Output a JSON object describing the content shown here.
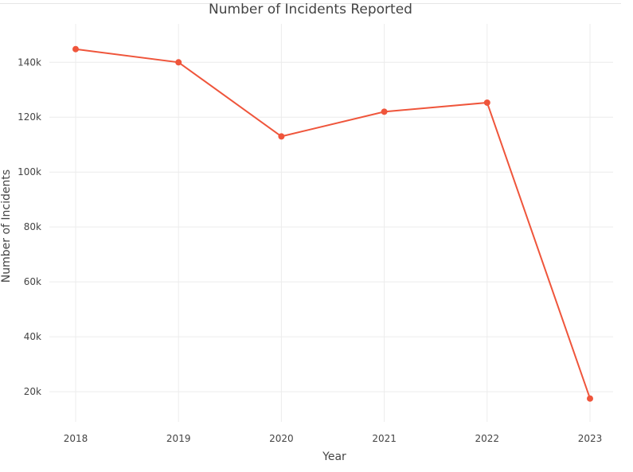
{
  "chart_data": {
    "type": "line",
    "title": "Number of Incidents Reported",
    "xlabel": "Year",
    "ylabel": "Number of Incidents",
    "categories": [
      "2018",
      "2019",
      "2020",
      "2021",
      "2022",
      "2023"
    ],
    "series": [
      {
        "values": [
          144800,
          140000,
          113000,
          122000,
          125300,
          17500
        ],
        "color": "#ef553b"
      }
    ],
    "yticks": [
      20000,
      40000,
      60000,
      80000,
      100000,
      120000,
      140000
    ],
    "ytick_labels": [
      "20k",
      "40k",
      "60k",
      "80k",
      "100k",
      "120k",
      "140k"
    ],
    "ylim": [
      9000,
      154000
    ],
    "grid": true,
    "legend": "none"
  }
}
